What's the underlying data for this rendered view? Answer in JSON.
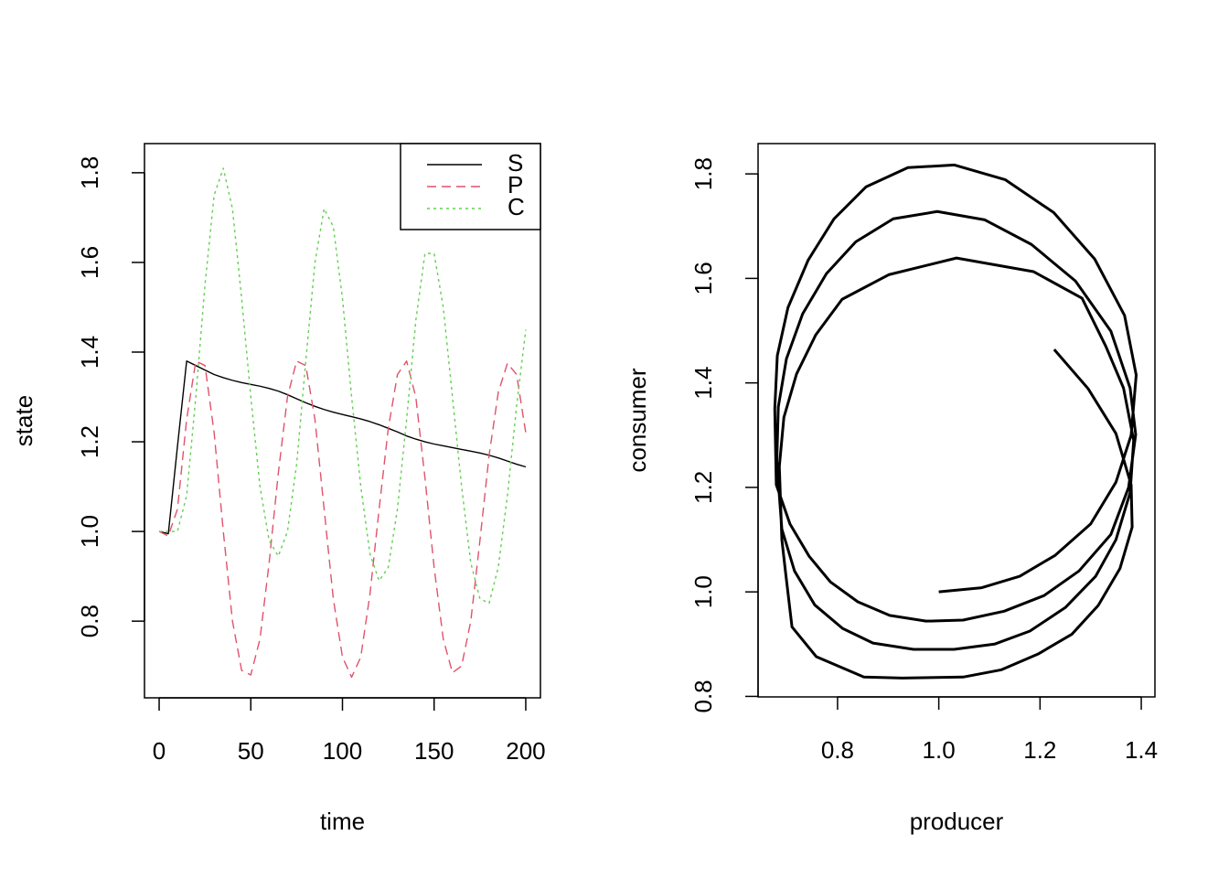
{
  "chart_data": [
    {
      "type": "line",
      "xlabel": "time",
      "ylabel": "state",
      "x": [
        0,
        5,
        10,
        15,
        20,
        25,
        30,
        35,
        40,
        45,
        50,
        55,
        60,
        65,
        70,
        75,
        80,
        85,
        90,
        95,
        100,
        105,
        110,
        115,
        120,
        125,
        130,
        135,
        140,
        145,
        150,
        155,
        160,
        165,
        170,
        175,
        180,
        185,
        190,
        195,
        200
      ],
      "series": [
        {
          "name": "S",
          "color": "#000000",
          "linestyle": "solid",
          "values": [
            1.0,
            0.995,
            1.19,
            1.38,
            1.37,
            1.36,
            1.35,
            1.343,
            1.337,
            1.332,
            1.328,
            1.324,
            1.319,
            1.313,
            1.305,
            1.296,
            1.287,
            1.279,
            1.272,
            1.266,
            1.261,
            1.256,
            1.251,
            1.245,
            1.238,
            1.23,
            1.222,
            1.213,
            1.206,
            1.2,
            1.195,
            1.191,
            1.187,
            1.183,
            1.179,
            1.175,
            1.17,
            1.164,
            1.157,
            1.15,
            1.144
          ]
        },
        {
          "name": "P",
          "color": "#DF536B",
          "linestyle": "dashed",
          "values": [
            1.0,
            0.99,
            1.05,
            1.25,
            1.38,
            1.37,
            1.22,
            1.0,
            0.8,
            0.69,
            0.68,
            0.76,
            0.93,
            1.13,
            1.3,
            1.38,
            1.37,
            1.25,
            1.05,
            0.85,
            0.72,
            0.675,
            0.72,
            0.86,
            1.05,
            1.23,
            1.35,
            1.38,
            1.3,
            1.12,
            0.92,
            0.76,
            0.685,
            0.7,
            0.8,
            0.98,
            1.17,
            1.31,
            1.375,
            1.35,
            1.22
          ]
        },
        {
          "name": "C",
          "color": "#61D04F",
          "linestyle": "dotted",
          "values": [
            1.0,
            1.0,
            1.0,
            1.08,
            1.3,
            1.55,
            1.75,
            1.81,
            1.72,
            1.52,
            1.3,
            1.1,
            0.98,
            0.945,
            1.0,
            1.15,
            1.38,
            1.6,
            1.72,
            1.68,
            1.52,
            1.3,
            1.1,
            0.95,
            0.89,
            0.92,
            1.05,
            1.25,
            1.47,
            1.62,
            1.62,
            1.5,
            1.3,
            1.1,
            0.93,
            0.85,
            0.84,
            0.92,
            1.08,
            1.28,
            1.45
          ]
        }
      ],
      "xlim": [
        -8,
        208
      ],
      "xticks": [
        0,
        50,
        100,
        150,
        200
      ],
      "ylim": [
        0.629,
        1.865
      ],
      "yticks": [
        0.8,
        {
          "value": 1,
          "label": "1.0"
        },
        1.2,
        1.4,
        1.6,
        1.8
      ],
      "legend": "topright",
      "line_width": 1.4
    },
    {
      "type": "line",
      "xlabel": "producer",
      "ylabel": "consumer",
      "x": [
        1.0,
        1.085,
        1.16,
        1.23,
        1.3,
        1.35,
        1.38,
        1.39,
        1.367,
        1.308,
        1.227,
        1.131,
        1.031,
        0.939,
        0.856,
        0.793,
        0.742,
        0.702,
        0.681,
        0.676,
        0.679,
        0.706,
        0.744,
        0.786,
        0.84,
        0.903,
        0.975,
        1.048,
        1.129,
        1.208,
        1.277,
        1.34,
        1.375,
        1.389,
        1.378,
        1.34,
        1.27,
        1.183,
        1.091,
        0.997,
        0.91,
        0.836,
        0.778,
        0.731,
        0.699,
        0.683,
        0.68,
        0.69,
        0.715,
        0.755,
        0.81,
        0.87,
        0.95,
        1.03,
        1.11,
        1.18,
        1.25,
        1.31,
        1.35,
        1.378,
        1.385,
        1.365,
        1.33,
        1.283,
        1.187,
        1.035,
        0.901,
        0.809,
        0.757,
        0.719,
        0.694,
        0.685,
        0.69,
        0.697,
        0.71,
        0.758,
        0.852,
        0.928,
        1.048,
        1.124,
        1.196,
        1.263,
        1.315,
        1.358,
        1.382,
        1.38,
        1.35,
        1.295,
        1.228
      ],
      "series": [
        {
          "color": "#000000",
          "linestyle": "solid",
          "values": [
            1.0,
            1.008,
            1.03,
            1.07,
            1.13,
            1.21,
            1.3,
            1.415,
            1.529,
            1.637,
            1.726,
            1.789,
            1.817,
            1.812,
            1.775,
            1.714,
            1.635,
            1.544,
            1.452,
            1.35,
            1.205,
            1.13,
            1.068,
            1.019,
            0.981,
            0.955,
            0.944,
            0.946,
            0.963,
            0.993,
            1.04,
            1.11,
            1.2,
            1.301,
            1.39,
            1.499,
            1.595,
            1.665,
            1.712,
            1.728,
            1.714,
            1.67,
            1.609,
            1.532,
            1.446,
            1.354,
            1.25,
            1.12,
            1.04,
            0.975,
            0.93,
            0.902,
            0.89,
            0.89,
            0.9,
            0.925,
            0.97,
            1.03,
            1.1,
            1.19,
            1.29,
            1.39,
            1.47,
            1.562,
            1.613,
            1.639,
            1.607,
            1.56,
            1.492,
            1.417,
            1.334,
            1.24,
            1.1,
            1.04,
            0.933,
            0.876,
            0.837,
            0.835,
            0.837,
            0.851,
            0.881,
            0.919,
            0.974,
            1.045,
            1.124,
            1.205,
            1.303,
            1.389,
            1.464
          ]
        }
      ],
      "xlim": [
        0.643,
        1.427
      ],
      "xticks": [
        0.8,
        {
          "value": 1,
          "label": "1.0"
        },
        1.2,
        1.4
      ],
      "ylim": [
        0.799,
        1.858
      ],
      "yticks": [
        0.8,
        {
          "value": 1,
          "label": "1.0"
        },
        1.2,
        1.4,
        1.6,
        1.8
      ],
      "line_width": 3
    }
  ]
}
